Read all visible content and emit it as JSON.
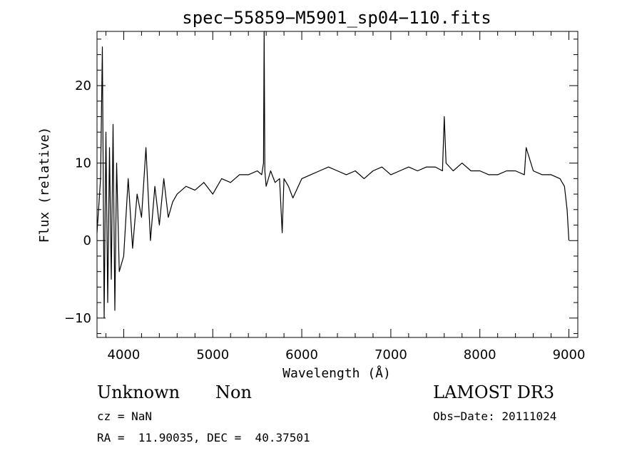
{
  "chart_data": {
    "type": "line",
    "title": "spec−55859−M5901_sp04−110.fits",
    "xlabel": "Wavelength (Å)",
    "ylabel": "Flux (relative)",
    "xlim": [
      3700,
      9100
    ],
    "ylim": [
      -12.5,
      27
    ],
    "xticks": [
      4000,
      5000,
      6000,
      7000,
      8000,
      9000
    ],
    "xtick_labels": [
      "4000",
      "5000",
      "6000",
      "7000",
      "8000",
      "9000"
    ],
    "yticks": [
      -10,
      0,
      10,
      20
    ],
    "ytick_labels": [
      "−10",
      "0",
      "10",
      "20"
    ],
    "grid": false,
    "legend": "none",
    "line_color": "#000000",
    "series": [
      {
        "x": [
          3700,
          3740,
          3760,
          3780,
          3800,
          3820,
          3840,
          3860,
          3880,
          3900,
          3920,
          3950,
          4000,
          4050,
          4100,
          4150,
          4200,
          4250,
          4300,
          4350,
          4400,
          4450,
          4500,
          4550,
          4600,
          4700,
          4800,
          4900,
          5000,
          5100,
          5200,
          5300,
          5400,
          5500,
          5550,
          5570,
          5577,
          5585,
          5600,
          5650,
          5700,
          5750,
          5780,
          5800,
          5850,
          5900,
          6000,
          6100,
          6200,
          6300,
          6400,
          6500,
          6600,
          6700,
          6800,
          6900,
          7000,
          7100,
          7200,
          7300,
          7400,
          7500,
          7580,
          7600,
          7620,
          7700,
          7800,
          7900,
          8000,
          8100,
          8200,
          8300,
          8400,
          8500,
          8520,
          8600,
          8700,
          8800,
          8900,
          8950,
          8980,
          9000
        ],
        "values": [
          1,
          8,
          25,
          -10,
          14,
          -8,
          12,
          -5,
          15,
          -9,
          10,
          -4,
          -2,
          8,
          -1,
          6,
          3,
          12,
          0,
          7,
          2,
          8,
          3,
          5,
          6,
          7,
          6.5,
          7.5,
          6,
          8,
          7.5,
          8.5,
          8.5,
          9,
          8.5,
          10,
          27,
          9,
          7,
          9,
          7.5,
          8,
          1,
          8,
          7,
          5.5,
          8,
          8.5,
          9,
          9.5,
          9,
          8.5,
          9,
          8,
          9,
          9.5,
          8.5,
          9,
          9.5,
          9,
          9.5,
          9.5,
          9,
          16,
          10,
          9,
          10,
          9,
          9,
          8.5,
          8.5,
          9,
          9,
          8.5,
          12,
          9,
          8.5,
          8.5,
          8,
          7,
          4,
          0
        ]
      }
    ]
  },
  "captions": {
    "object_class": "Unknown",
    "object_subclass": "Non",
    "survey": "LAMOST DR3",
    "redshift": "cz = NaN",
    "obs_date": "Obs−Date: 20111024",
    "coords": "RA =  11.90035, DEC =  40.37501"
  }
}
